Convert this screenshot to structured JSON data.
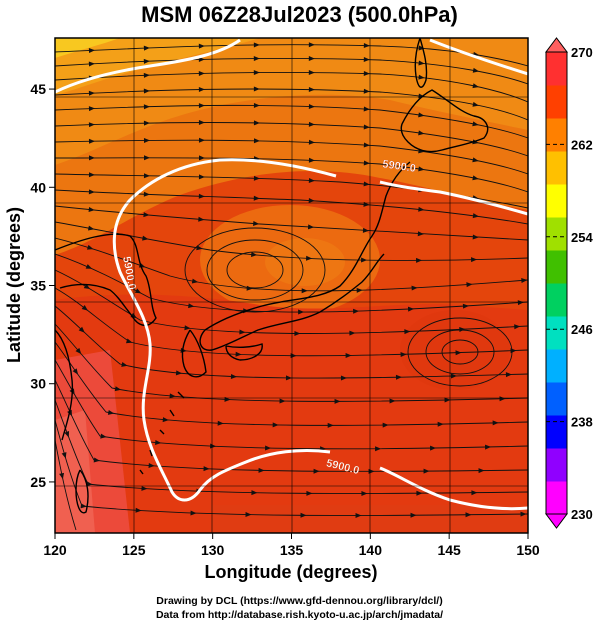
{
  "title": "MSM 06Z28Jul2023 (500.0hPa)",
  "map": {
    "xlabel": "Longitude (degrees)",
    "ylabel": "Latitude  (degrees)",
    "lon_range": [
      120,
      150
    ],
    "lat_range": [
      22.4,
      47.6
    ],
    "lon_ticks": [
      "120",
      "125",
      "130",
      "135",
      "140",
      "145",
      "150"
    ],
    "lat_ticks": [
      "25",
      "30",
      "35",
      "40",
      "45"
    ],
    "grid": true,
    "contour_label": "5900.0",
    "contour_label_positions": [
      {
        "lon": 141.8,
        "lat": 40.9,
        "text": "5900.0"
      },
      {
        "lon": 138.2,
        "lat": 25.6,
        "text": "5900.0"
      },
      {
        "lon": 124.5,
        "lat": 35.6,
        "text": "5900.0"
      }
    ]
  },
  "colorbar": {
    "min": 230,
    "max": 270,
    "tick_labels": [
      "270",
      "262",
      "254",
      "246",
      "238",
      "230"
    ],
    "colors": [
      "#ff00ff",
      "#9000ff",
      "#0000ff",
      "#0060ff",
      "#00b0ff",
      "#00e0c0",
      "#00d060",
      "#40c000",
      "#a0e000",
      "#ffff00",
      "#ffc000",
      "#ff8000",
      "#ff4000",
      "#ff3030"
    ]
  },
  "credits": {
    "line1": "Drawing by DCL (https://www.gfd-dennou.org/library/dcl/)",
    "line2": "Data from http://database.rish.kyoto-u.ac.jp/arch/jmadata/"
  }
}
